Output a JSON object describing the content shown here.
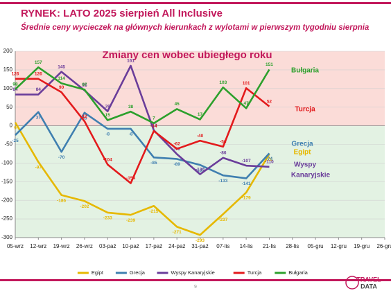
{
  "chart_data": {
    "type": "line",
    "title": "RYNEK: LATO 2025 sierpień All Inclusive",
    "subtitle": "Średnie ceny wycieczek na głównych kierunkach z wylotami w pierwszym tygodniu sierpnia",
    "annotation": "Zmiany cen wobec ubiegłego roku",
    "series_labels": [
      {
        "text": "Bułgaria",
        "color": "#2ca02c"
      },
      {
        "text": "Turcja",
        "color": "#e31a1c"
      },
      {
        "text": "Grecja",
        "color": "#3f7fb0"
      },
      {
        "text": "Egipt",
        "color": "#e6b800"
      },
      {
        "text": "Wyspy",
        "color": "#6a3d9a"
      },
      {
        "text": "Kanaryjskie",
        "color": "#6a3d9a"
      }
    ],
    "categories": [
      "05-wrz",
      "12-wrz",
      "19-wrz",
      "26-wrz",
      "03-paź",
      "10-paź",
      "17-paź",
      "24-paź",
      "31-paź",
      "07-lis",
      "14-lis",
      "21-lis",
      "28-lis",
      "05-gru",
      "12-gru",
      "19-gru",
      "26-gru"
    ],
    "ylim": [
      -300,
      200
    ],
    "yticks": [
      -300,
      -250,
      -200,
      -150,
      -100,
      -50,
      0,
      50,
      100,
      150,
      200
    ],
    "grid": true,
    "legend": "bottom",
    "series": [
      {
        "name": "Egipt",
        "color": "#e6b800",
        "values": [
          9,
          -97,
          -186,
          -202,
          -233,
          -239,
          -215,
          -271,
          -293,
          -237,
          -179,
          -76,
          null,
          null,
          null,
          null,
          null
        ]
      },
      {
        "name": "Grecja",
        "color": "#3f7fb0",
        "values": [
          -25,
          37,
          -70,
          35,
          -8,
          -8,
          -85,
          -89,
          -105,
          -133,
          -141,
          -74,
          null,
          null,
          null,
          null,
          null
        ]
      },
      {
        "name": "Wyspy Kanaryjskie",
        "color": "#6a3d9a",
        "values": [
          84,
          84,
          145,
          95,
          39,
          161,
          -12,
          -76,
          -130,
          -86,
          -107,
          -110,
          null,
          null,
          null,
          null,
          null
        ]
      },
      {
        "name": "Turcja",
        "color": "#e31a1c",
        "values": [
          126,
          126,
          90,
          12,
          -104,
          -154,
          -14,
          -62,
          -40,
          -56,
          101,
          52,
          null,
          null,
          null,
          null,
          null
        ]
      },
      {
        "name": "Bułgaria",
        "color": "#2ca02c",
        "values": [
          98,
          157,
          114,
          97,
          15,
          38,
          7,
          45,
          17,
          103,
          47,
          151,
          null,
          null,
          null,
          null,
          null
        ]
      }
    ],
    "page_number": "9",
    "logo": [
      "TRAVEL",
      "DATA"
    ]
  }
}
